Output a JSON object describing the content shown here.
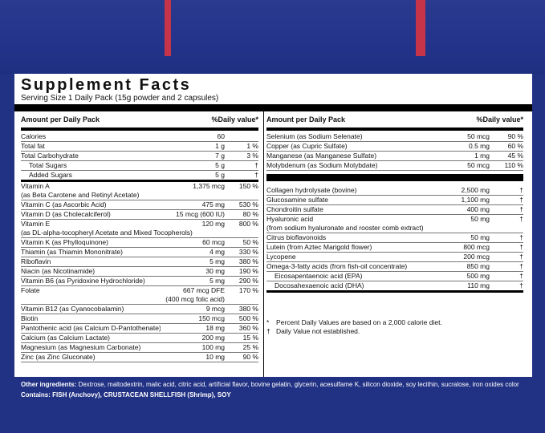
{
  "title": "Supplement Facts",
  "serving": "Serving Size 1 Daily Pack (15g powder and 2 capsules)",
  "left_header": {
    "amount": "Amount per Daily Pack",
    "dv": "%Daily value*"
  },
  "right_header": {
    "amount": "Amount per Daily Pack",
    "dv": "%Daily value*"
  },
  "left_rows": [
    {
      "name": "Calories",
      "amount": "60",
      "dv": ""
    },
    {
      "name": "Total fat",
      "amount": "1 g",
      "dv": "1 %"
    },
    {
      "name": "Total Carbohydrate",
      "amount": "7 g",
      "dv": "3 %"
    },
    {
      "name": "Total Sugars",
      "amount": "5 g",
      "dv": "†",
      "indent": true
    },
    {
      "name": "Added Sugars",
      "amount": "5 g",
      "dv": "†",
      "indent": true,
      "thick": true
    },
    {
      "name": "Vitamin A",
      "amount": "1,375 mcg",
      "dv": "150 %",
      "sub": "(as Beta Carotene and Retinyl Acetate)"
    },
    {
      "name": "Vitamin C (as Ascorbic Acid)",
      "amount": "475 mg",
      "dv": "530 %"
    },
    {
      "name": "Vitamin D (as Cholecalciferol)",
      "amount": "15 mcg (600 IU)",
      "dv": "80 %"
    },
    {
      "name": "Vitamin E",
      "amount": "120 mg",
      "dv": "800 %",
      "sub": "(as DL-alpha-tocopheryl Acetate and Mixed Tocopherols)"
    },
    {
      "name": "Vitamin K (as Phylloquinone)",
      "amount": "60 mcg",
      "dv": "50 %"
    },
    {
      "name": "Thiamin (as Thiamin Mononitrate)",
      "amount": "4 mg",
      "dv": "330 %"
    },
    {
      "name": "Riboflavin",
      "amount": "5 mg",
      "dv": "380 %"
    },
    {
      "name": "Niacin (as Nicotinamide)",
      "amount": "30 mg",
      "dv": "190 %"
    },
    {
      "name": "Vitamin B6 (as Pyridoxine Hydrochloride)",
      "amount": "5 mg",
      "dv": "290 %"
    },
    {
      "name": "Folate",
      "amount": "667 mcg DFE",
      "dv": "170 %",
      "sub": "(400 mcg folic acid)",
      "sub_right": true
    },
    {
      "name": "Vitamin B12 (as Cyanocobalamin)",
      "amount": "9 mcg",
      "dv": "380 %"
    },
    {
      "name": "Biotin",
      "amount": "150 mcg",
      "dv": "500 %"
    },
    {
      "name": "Pantothenic acid (as Calcium D-Pantothenate)",
      "amount": "18 mg",
      "dv": "360 %"
    },
    {
      "name": "Calcium (as Calcium Lactate)",
      "amount": "200 mg",
      "dv": "15 %"
    },
    {
      "name": "Magnesium (as Magnesium Carbonate)",
      "amount": "100 mg",
      "dv": "25 %"
    },
    {
      "name": "Zinc (as Zinc Gluconate)",
      "amount": "10 mg",
      "dv": "90 %"
    }
  ],
  "right_rows_a": [
    {
      "name": "Selenium (as Sodium Selenate)",
      "amount": "50 mcg",
      "dv": "90 %"
    },
    {
      "name": "Copper (as Cupric Sulfate)",
      "amount": "0.5 mg",
      "dv": "60 %"
    },
    {
      "name": "Manganese (as Manganese Sulfate)",
      "amount": "1 mg",
      "dv": "45 %"
    },
    {
      "name": "Molybdenum (as Sodium Molybdate)",
      "amount": "50 mcg",
      "dv": "110 %"
    }
  ],
  "right_rows_b": [
    {
      "name": "Collagen hydrolysate (bovine)",
      "amount": "2,500 mg",
      "dv": "†"
    },
    {
      "name": "Glucosamine sulfate",
      "amount": "1,100 mg",
      "dv": "†"
    },
    {
      "name": "Chondroitin sulfate",
      "amount": "400 mg",
      "dv": "†"
    },
    {
      "name": "Hyaluronic acid",
      "amount": "50 mg",
      "dv": "†",
      "sub": "(from sodium hyaluronate and rooster comb extract)"
    },
    {
      "name": "Citrus bioflavonoids",
      "amount": "50 mg",
      "dv": "†"
    },
    {
      "name": "Lutein (from Aztec Marigold flower)",
      "amount": "800 mcg",
      "dv": "†"
    },
    {
      "name": "Lycopene",
      "amount": "200 mcg",
      "dv": "†"
    },
    {
      "name": "Omega-3-fatty acids (from fish-oil concentrate)",
      "amount": "850 mg",
      "dv": "†"
    },
    {
      "name": "Eicosapentaenoic acid (EPA)",
      "amount": "500 mg",
      "dv": "†",
      "indent": true
    },
    {
      "name": "Docosahexaenoic acid (DHA)",
      "amount": "110 mg",
      "dv": "†",
      "indent": true,
      "thick": true
    }
  ],
  "footnotes": [
    {
      "symbol": "*",
      "text": "Percent Daily Values are based on a 2,000 calorie diet."
    },
    {
      "symbol": "†",
      "text": "Daily Value not established."
    }
  ],
  "other_ingredients_label": "Other ingredients:",
  "other_ingredients": "Dextrose, maltodextrin, malic acid, citric acid, artificial flavor, bovine gelatin, glycerin, acesulfame K, silicon dioxide, soy lecithin, sucralose, iron oxides color",
  "contains_label": "Contains:",
  "contains": "FISH (Anchovy), CRUSTACEAN SHELLFISH (Shrimp), SOY",
  "colors": {
    "box_blue": "#213183",
    "accent_red": "#c6344a",
    "label_bg": "#ffffff"
  }
}
